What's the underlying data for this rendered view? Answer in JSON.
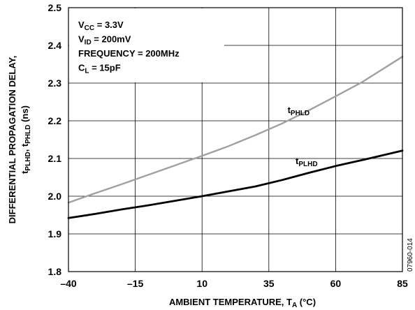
{
  "chart_data": {
    "type": "line",
    "xlabel": {
      "main": "AMBIENT TEMPERATURE, T",
      "sub": "A",
      "unit": " (°C)"
    },
    "ylabel": {
      "line1": "DIFFERENTIAL PROPAGATION DELAY,",
      "line2_parts": [
        {
          "t": "t",
          "sub": false
        },
        {
          "t": "PLHD",
          "sub": true
        },
        {
          "t": ", t",
          "sub": false
        },
        {
          "t": "PHLD",
          "sub": true
        },
        {
          "t": " (ns)",
          "sub": false
        }
      ]
    },
    "xlim": [
      -40,
      85
    ],
    "ylim": [
      1.8,
      2.5
    ],
    "xticks": [
      -40,
      -15,
      10,
      35,
      60,
      85
    ],
    "xtick_labels": [
      "–40",
      "–15",
      "10",
      "35",
      "60",
      "85"
    ],
    "yticks": [
      1.8,
      1.9,
      2.0,
      2.1,
      2.2,
      2.3,
      2.4,
      2.5
    ],
    "ytick_labels": [
      "1.8",
      "1.9",
      "2.0",
      "2.1",
      "2.2",
      "2.3",
      "2.4",
      "2.5"
    ],
    "grid": true,
    "conditions": [
      [
        {
          "t": "V",
          "sub": false
        },
        {
          "t": "CC",
          "sub": true
        },
        {
          "t": " = 3.3V",
          "sub": false
        }
      ],
      [
        {
          "t": "V",
          "sub": false
        },
        {
          "t": "ID",
          "sub": true
        },
        {
          "t": " = 200mV",
          "sub": false
        }
      ],
      [
        {
          "t": "FREQUENCY = 200MHz",
          "sub": false
        }
      ],
      [
        {
          "t": "C",
          "sub": false
        },
        {
          "t": "L",
          "sub": true
        },
        {
          "t": " = 15pF",
          "sub": false
        }
      ]
    ],
    "series": [
      {
        "name": "tPHLD",
        "label_main": "t",
        "label_sub": "PHLD",
        "label_at": [
          42,
          2.22
        ],
        "color": "#a0a0a0",
        "x": [
          -40,
          -30,
          -20,
          -10,
          0,
          10,
          20,
          30,
          40,
          50,
          60,
          70,
          85
        ],
        "y": [
          1.983,
          2.008,
          2.032,
          2.057,
          2.082,
          2.107,
          2.133,
          2.162,
          2.193,
          2.228,
          2.265,
          2.303,
          2.37
        ]
      },
      {
        "name": "tPLHD",
        "label_main": "t",
        "label_sub": "PLHD",
        "label_at": [
          45,
          2.085
        ],
        "color": "#000000",
        "x": [
          -40,
          -30,
          -20,
          -10,
          0,
          10,
          20,
          30,
          40,
          50,
          60,
          70,
          85
        ],
        "y": [
          1.942,
          1.953,
          1.965,
          1.976,
          1.988,
          2.0,
          2.013,
          2.026,
          2.043,
          2.062,
          2.08,
          2.096,
          2.121
        ]
      }
    ],
    "figure_id": "07960-014"
  }
}
